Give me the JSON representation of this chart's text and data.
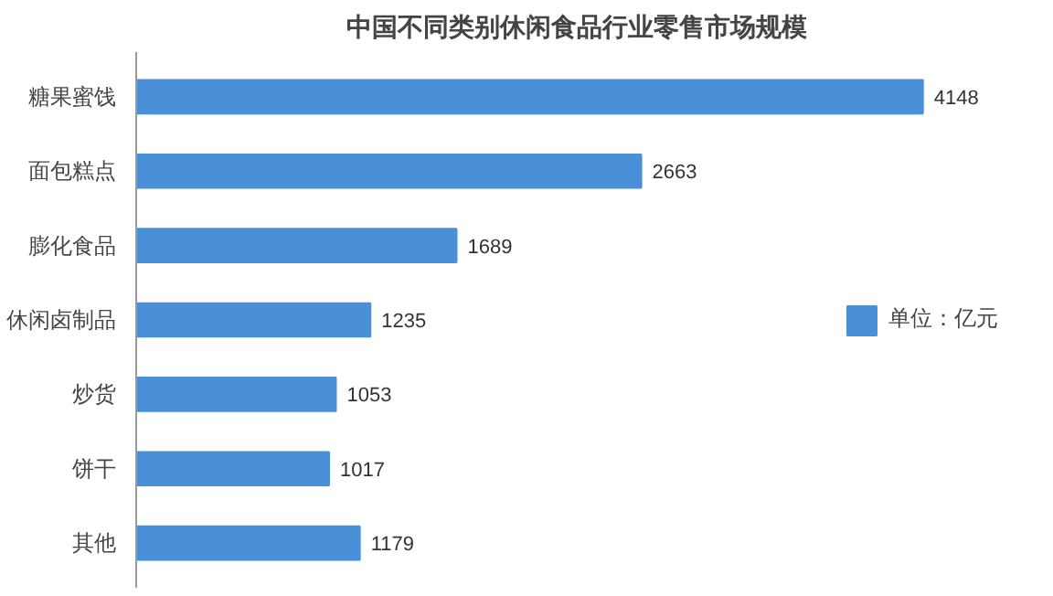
{
  "chart_data": {
    "type": "bar",
    "orientation": "horizontal",
    "title": "中国不同类别休闲食品行业零售市场规模",
    "categories": [
      "糖果蜜饯",
      "面包糕点",
      "膨化食品",
      "休闲卤制品",
      "炒货",
      "饼干",
      "其他"
    ],
    "series": [
      {
        "name": "单位：亿元",
        "color": "#4a90d9",
        "values": [
          4148,
          2663,
          1689,
          1235,
          1053,
          1017,
          1179
        ]
      }
    ],
    "data_labels": true,
    "legend": "right",
    "grid": false,
    "tick_labels": "y"
  }
}
